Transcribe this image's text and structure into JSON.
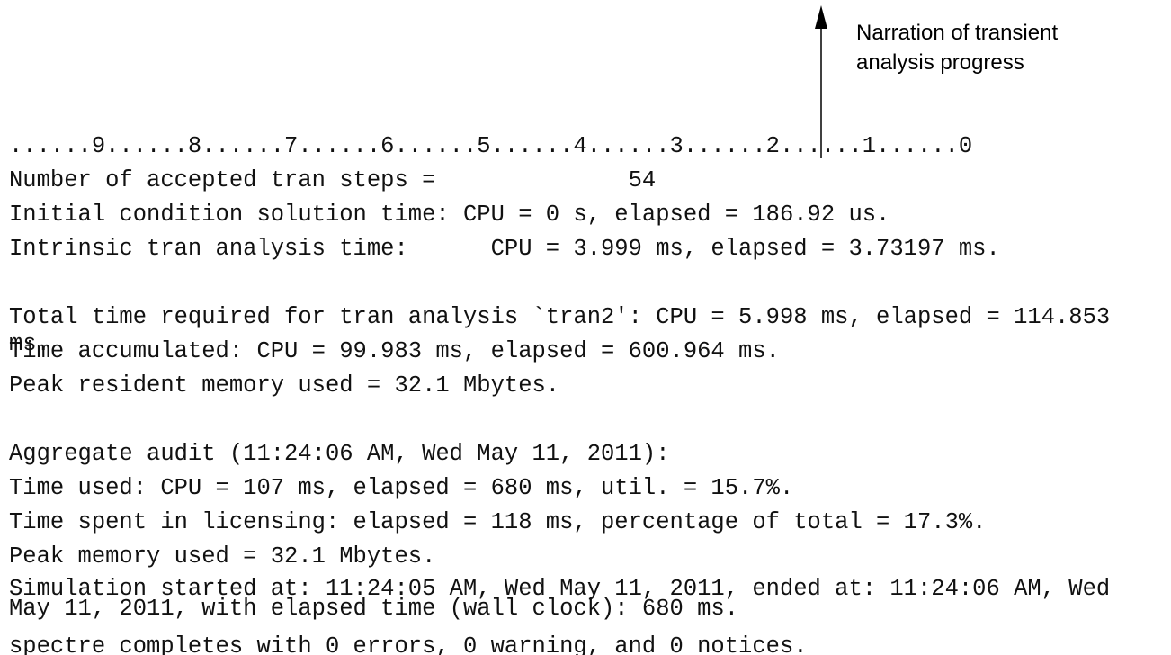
{
  "annotation": {
    "lines": [
      "Narration of transient",
      "analysis progress"
    ]
  },
  "log": {
    "lines": [
      "......9......8......7......6......5......4......3......2......1......0",
      "Number of accepted tran steps =              54",
      "Initial condition solution time: CPU = 0 s, elapsed = 186.92 us.",
      "Intrinsic tran analysis time:      CPU = 3.999 ms, elapsed = 3.73197 ms.",
      "Total time required for tran analysis `tran2': CPU = 5.998 ms, elapsed = 114.853 ms.",
      "Time accumulated: CPU = 99.983 ms, elapsed = 600.964 ms.",
      "Peak resident memory used = 32.1 Mbytes.",
      "Aggregate audit (11:24:06 AM, Wed May 11, 2011):",
      "Time used: CPU = 107 ms, elapsed = 680 ms, util. = 15.7%.",
      "Time spent in licensing: elapsed = 118 ms, percentage of total = 17.3%.",
      "Peak memory used = 32.1 Mbytes.",
      "Simulation started at: 11:24:05 AM, Wed May 11, 2011, ended at: 11:24:06 AM, Wed May 11, 2011, with elapsed time (wall clock): 680 ms.",
      "spectre completes with 0 errors, 0 warning, and 0 notices."
    ]
  }
}
